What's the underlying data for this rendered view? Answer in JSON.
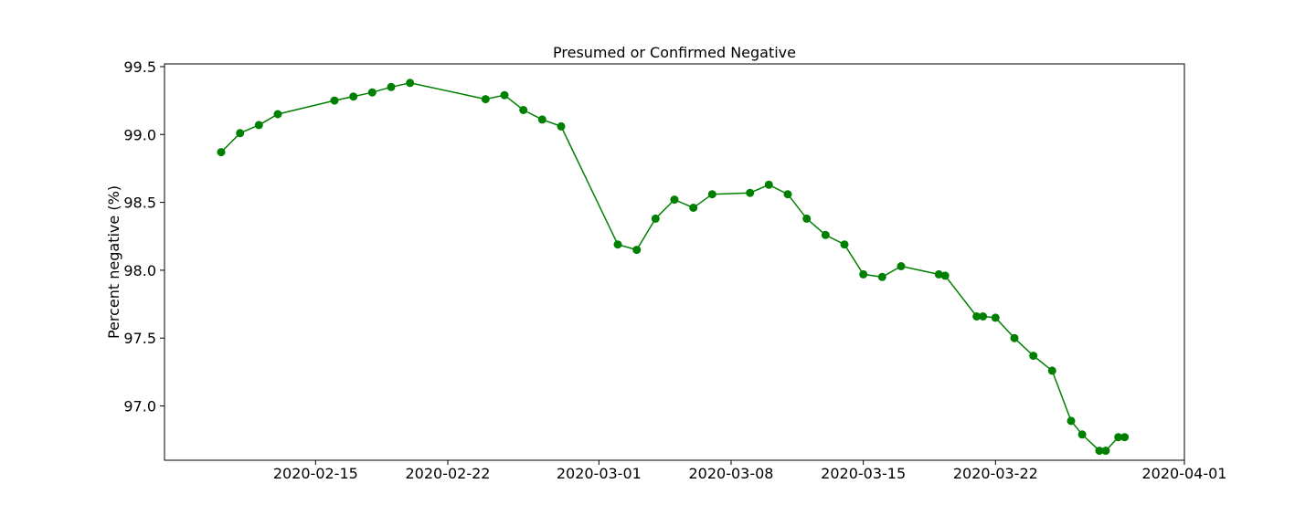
{
  "chart_data": {
    "type": "line",
    "title": "Presumed or Confirmed Negative",
    "xlabel": "",
    "ylabel": "Percent negative (%)",
    "color": "#008000",
    "xlim": [
      "2020-02-07",
      "2020-04-01"
    ],
    "ylim": [
      96.6,
      99.52
    ],
    "x_ticks": [
      "2020-02-15",
      "2020-02-22",
      "2020-03-01",
      "2020-03-08",
      "2020-03-15",
      "2020-03-22",
      "2020-04-01"
    ],
    "y_ticks": [
      "97.0",
      "97.5",
      "98.0",
      "98.5",
      "99.0",
      "99.5"
    ],
    "series": [
      {
        "name": "Percent negative",
        "points": [
          {
            "x": "2020-02-10",
            "y": 98.87
          },
          {
            "x": "2020-02-11",
            "y": 99.01
          },
          {
            "x": "2020-02-12",
            "y": 99.07
          },
          {
            "x": "2020-02-13",
            "y": 99.15
          },
          {
            "x": "2020-02-16",
            "y": 99.25
          },
          {
            "x": "2020-02-17",
            "y": 99.28
          },
          {
            "x": "2020-02-18",
            "y": 99.31
          },
          {
            "x": "2020-02-19",
            "y": 99.35
          },
          {
            "x": "2020-02-20",
            "y": 99.38
          },
          {
            "x": "2020-02-24",
            "y": 99.26
          },
          {
            "x": "2020-02-25",
            "y": 99.29
          },
          {
            "x": "2020-02-26",
            "y": 99.18
          },
          {
            "x": "2020-02-27",
            "y": 99.11
          },
          {
            "x": "2020-02-28",
            "y": 99.06
          },
          {
            "x": "2020-03-02",
            "y": 98.19
          },
          {
            "x": "2020-03-03",
            "y": 98.15
          },
          {
            "x": "2020-03-04",
            "y": 98.38
          },
          {
            "x": "2020-03-05",
            "y": 98.52
          },
          {
            "x": "2020-03-06",
            "y": 98.46
          },
          {
            "x": "2020-03-07",
            "y": 98.56
          },
          {
            "x": "2020-03-09",
            "y": 98.57
          },
          {
            "x": "2020-03-10",
            "y": 98.63
          },
          {
            "x": "2020-03-11",
            "y": 98.56
          },
          {
            "x": "2020-03-12",
            "y": 98.38
          },
          {
            "x": "2020-03-13",
            "y": 98.26
          },
          {
            "x": "2020-03-14",
            "y": 98.19
          },
          {
            "x": "2020-03-15",
            "y": 97.97
          },
          {
            "x": "2020-03-16",
            "y": 97.95
          },
          {
            "x": "2020-03-17",
            "y": 98.03
          },
          {
            "x": "2020-03-19",
            "y": 97.97
          },
          {
            "x": "2020-03-19 08:00",
            "y": 97.96
          },
          {
            "x": "2020-03-21",
            "y": 97.66
          },
          {
            "x": "2020-03-21 08:00",
            "y": 97.66
          },
          {
            "x": "2020-03-22",
            "y": 97.65
          },
          {
            "x": "2020-03-23",
            "y": 97.5
          },
          {
            "x": "2020-03-24",
            "y": 97.37
          },
          {
            "x": "2020-03-25",
            "y": 97.26
          },
          {
            "x": "2020-03-26",
            "y": 96.89
          },
          {
            "x": "2020-03-26 14:00",
            "y": 96.79
          },
          {
            "x": "2020-03-27 12:00",
            "y": 96.67
          },
          {
            "x": "2020-03-27 20:00",
            "y": 96.67
          },
          {
            "x": "2020-03-28 12:00",
            "y": 96.77
          },
          {
            "x": "2020-03-28 20:00",
            "y": 96.77
          }
        ]
      }
    ]
  }
}
